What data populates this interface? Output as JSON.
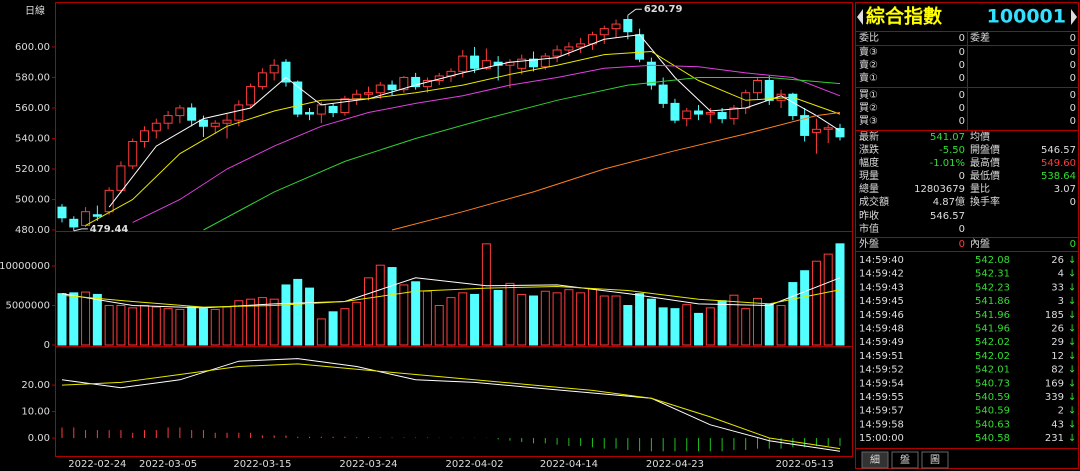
{
  "chart_data": [
    {
      "type": "candlestick",
      "title": "日線",
      "categories": [
        null,
        null,
        null,
        "2022-02-24",
        null,
        null,
        null,
        null,
        null,
        "2022-03-05",
        null,
        null,
        null,
        null,
        null,
        null,
        null,
        "2022-03-15",
        null,
        null,
        null,
        null,
        null,
        null,
        null,
        null,
        "2022-03-24",
        null,
        null,
        null,
        null,
        null,
        null,
        null,
        null,
        "2022-04-02",
        null,
        null,
        null,
        null,
        null,
        null,
        null,
        "2022-04-14",
        null,
        null,
        null,
        null,
        null,
        null,
        null,
        null,
        "2022-04-23",
        null,
        null,
        null,
        null,
        null,
        null,
        null,
        null,
        null,
        null,
        "2022-05-13",
        null,
        null,
        null
      ],
      "open": [
        495,
        487,
        483,
        490,
        492,
        506,
        522,
        538,
        545,
        550,
        555,
        560,
        552,
        548,
        550,
        552,
        562,
        574,
        583,
        590,
        577,
        557,
        556,
        561,
        557,
        566,
        569,
        570,
        575,
        572,
        580,
        574,
        578,
        581,
        584,
        594,
        586,
        590,
        588,
        586,
        592,
        587,
        594,
        598,
        600,
        602,
        608,
        612,
        618,
        608,
        590,
        575,
        563,
        553,
        558,
        556,
        557,
        553,
        560,
        570,
        578,
        565,
        569,
        555,
        544,
        546,
        546.57
      ],
      "high": [
        497,
        489,
        495,
        496,
        508,
        525,
        540,
        548,
        553,
        558,
        562,
        563,
        555,
        552,
        556,
        565,
        576,
        586,
        592,
        592,
        578,
        560,
        564,
        563,
        568,
        572,
        574,
        577,
        578,
        581,
        583,
        580,
        583,
        586,
        598,
        600,
        599,
        594,
        592,
        595,
        597,
        596,
        601,
        603,
        606,
        610,
        614,
        618,
        620.79,
        612,
        593,
        580,
        566,
        560,
        562,
        560,
        560,
        562,
        572,
        580,
        581,
        572,
        570,
        560,
        553,
        549,
        549.6
      ],
      "low": [
        485,
        479.44,
        482,
        486,
        490,
        504,
        520,
        534,
        540,
        546,
        550,
        548,
        541,
        543,
        540,
        548,
        560,
        572,
        578,
        574,
        554,
        552,
        550,
        554,
        555,
        562,
        565,
        566,
        568,
        570,
        572,
        570,
        575,
        577,
        580,
        583,
        585,
        578,
        573,
        582,
        584,
        585,
        590,
        594,
        596,
        598,
        602,
        606,
        605,
        590,
        572,
        560,
        550,
        548,
        552,
        550,
        550,
        549,
        556,
        566,
        562,
        560,
        552,
        538,
        530,
        537,
        538.64
      ],
      "close": [
        488,
        482,
        492,
        489,
        506,
        522,
        538,
        545,
        550,
        555,
        560,
        552,
        548,
        550,
        552,
        562,
        574,
        583,
        588,
        577,
        556,
        556,
        562,
        557,
        566,
        569,
        570,
        575,
        572,
        580,
        574,
        578,
        581,
        584,
        594,
        586,
        591,
        588,
        590,
        592,
        587,
        594,
        598,
        600,
        602,
        608,
        612,
        615,
        610,
        592,
        575,
        563,
        552,
        558,
        556,
        557,
        553,
        560,
        570,
        578,
        565,
        569,
        555,
        542,
        546,
        547,
        541.07
      ],
      "up_color": "#ff3c3c",
      "down_color": "#54ffff",
      "ylim": [
        480,
        627.5
      ],
      "yticks": [
        {
          "value": 480,
          "label": "480.00"
        },
        {
          "value": 500,
          "label": "500.00"
        },
        {
          "value": 520,
          "label": "520.00"
        },
        {
          "value": 540,
          "label": "540.00"
        },
        {
          "value": 560,
          "label": "560.00"
        },
        {
          "value": 580,
          "label": "580.00"
        },
        {
          "value": 600,
          "label": "600.00"
        }
      ],
      "high_label": 620.79,
      "low_label": 479.44,
      "lines": [
        {
          "color": "#ffffff",
          "x": [
            4,
            8,
            12,
            16,
            19,
            22,
            26,
            30,
            34,
            38,
            42,
            46,
            49,
            52,
            55,
            58,
            61,
            64,
            66
          ],
          "values": [
            495,
            535,
            553,
            560,
            580,
            562,
            566,
            575,
            583,
            590,
            593,
            605,
            608,
            580,
            558,
            560,
            568,
            555,
            545
          ]
        },
        {
          "color": "#e8e800",
          "x": [
            2,
            6,
            10,
            14,
            18,
            22,
            26,
            30,
            34,
            38,
            42,
            46,
            50,
            54,
            58,
            62,
            66
          ],
          "values": [
            483,
            500,
            530,
            548,
            558,
            565,
            566,
            570,
            575,
            582,
            588,
            595,
            597,
            578,
            565,
            567,
            556
          ]
        },
        {
          "color": "#e040e0",
          "x": [
            6,
            10,
            14,
            18,
            22,
            26,
            30,
            34,
            38,
            42,
            46,
            50,
            54,
            58,
            62,
            66
          ],
          "values": [
            485,
            500,
            520,
            535,
            548,
            557,
            563,
            568,
            575,
            580,
            586,
            588,
            587,
            583,
            580,
            568
          ]
        },
        {
          "color": "#30d030",
          "x": [
            12,
            18,
            24,
            30,
            36,
            42,
            48,
            54,
            60,
            66
          ],
          "values": [
            480,
            505,
            525,
            540,
            553,
            565,
            575,
            580,
            580,
            576
          ]
        },
        {
          "color": "#ff8020",
          "x": [
            28,
            34,
            40,
            46,
            52,
            58,
            64,
            66
          ],
          "values": [
            480,
            492,
            505,
            520,
            532,
            543,
            555,
            557
          ]
        }
      ]
    },
    {
      "type": "bar",
      "values": [
        6500000,
        6600000,
        6700000,
        6400000,
        5000000,
        5000000,
        4700000,
        5000000,
        4800000,
        4600000,
        4500000,
        4800000,
        4600000,
        4500000,
        4800000,
        5600000,
        5800000,
        6000000,
        5800000,
        7600000,
        8300000,
        7200000,
        3300000,
        4200000,
        4600000,
        5400000,
        8500000,
        10100000,
        9800000,
        7600000,
        8000000,
        6800000,
        5000000,
        6000000,
        6600000,
        6400000,
        12800000,
        6900000,
        7800000,
        6400000,
        6200000,
        6800000,
        6600000,
        7000000,
        6600000,
        7100000,
        6200000,
        6200000,
        5000000,
        6500000,
        5800000,
        4700000,
        4600000,
        5100000,
        4000000,
        4700000,
        5600000,
        6300000,
        4600000,
        5900000,
        5200000,
        5000000,
        7900000,
        9400000,
        10600000,
        11500000,
        12803679
      ],
      "up_color": "#ff3c3c",
      "down_color": "#54ffff",
      "ylim": [
        0,
        14300000
      ],
      "yticks": [
        0,
        5000000,
        10000000
      ],
      "lines": [
        {
          "color": "#ffffff",
          "x": [
            0,
            6,
            12,
            18,
            24,
            30,
            36,
            42,
            48,
            54,
            60,
            66
          ],
          "values": [
            6500000,
            5000000,
            4700000,
            5200000,
            5500000,
            8500000,
            7500000,
            7600000,
            6500000,
            5200000,
            5000000,
            8500000
          ]
        },
        {
          "color": "#e8e800",
          "x": [
            0,
            6,
            12,
            18,
            24,
            30,
            36,
            42,
            48,
            54,
            60,
            66
          ],
          "values": [
            6300000,
            5500000,
            4800000,
            5000000,
            5500000,
            6800000,
            7200000,
            7400000,
            6900000,
            5800000,
            5200000,
            7000000
          ]
        }
      ]
    },
    {
      "type": "line",
      "ylim": [
        -6.4,
        34
      ],
      "yticks": [
        {
          "value": 0,
          "label": "0.00"
        },
        {
          "value": 10,
          "label": "10.00"
        },
        {
          "value": 20,
          "label": "20.00"
        }
      ],
      "histogram": [
        4,
        4,
        3,
        3,
        3,
        3,
        2,
        3,
        3,
        4,
        4,
        3,
        3,
        2,
        2,
        2,
        2,
        1,
        1,
        1,
        0.5,
        0.5,
        0.5,
        0.5,
        0.5,
        0.3,
        0.3,
        0.2,
        0.2,
        0.2,
        0.2,
        0.2,
        0.1,
        0.1,
        0.1,
        0.1,
        0.1,
        -0.5,
        -1,
        -1.5,
        -2,
        -2,
        -2.5,
        -3,
        -3,
        -3.5,
        -4,
        -4,
        -4.5,
        -5,
        -5,
        -5,
        -5,
        -5,
        -5,
        -5,
        -5,
        -4.5,
        -4.5,
        -4,
        -4,
        -4,
        -3.5,
        -3.5,
        -3,
        -3,
        -3
      ],
      "positive_color": "#ff3c3c",
      "negative_color": "#20c020",
      "series": [
        {
          "color": "#ffffff",
          "x": [
            0,
            5,
            10,
            15,
            20,
            25,
            30,
            35,
            40,
            45,
            50,
            55,
            60,
            66
          ],
          "values": [
            22,
            19,
            22,
            29,
            30,
            27,
            22,
            21,
            19,
            17,
            15,
            5,
            -1,
            -5
          ]
        },
        {
          "color": "#e8e800",
          "x": [
            0,
            5,
            10,
            15,
            20,
            25,
            30,
            35,
            40,
            45,
            50,
            55,
            60,
            66
          ],
          "values": [
            20,
            21,
            24,
            27,
            28,
            26,
            24,
            22,
            20,
            18,
            15,
            8,
            0,
            -4
          ]
        }
      ]
    }
  ],
  "quote": {
    "title": "綜合指數",
    "code": "100001",
    "rows": [
      {
        "cells": [
          "委比",
          "0",
          "委差",
          "0"
        ],
        "colors": [
          "#ddd",
          "#ddd",
          "#ddd",
          "#ddd"
        ]
      },
      {
        "cells": [
          "賣③",
          "0",
          "0"
        ],
        "colors": [
          "#ddd",
          "#ddd",
          "#ddd"
        ]
      },
      {
        "cells": [
          "賣②",
          "0",
          "0"
        ],
        "colors": [
          "#ddd",
          "#ddd",
          "#ddd"
        ]
      },
      {
        "cells": [
          "賣①",
          "0",
          "0"
        ],
        "colors": [
          "#ddd",
          "#ddd",
          "#ddd"
        ]
      },
      {
        "cells": [
          "買①",
          "0",
          "0"
        ],
        "colors": [
          "#ddd",
          "#ddd",
          "#ddd"
        ]
      },
      {
        "cells": [
          "買②",
          "0",
          "0"
        ],
        "colors": [
          "#ddd",
          "#ddd",
          "#ddd"
        ]
      },
      {
        "cells": [
          "買③",
          "0",
          "0"
        ],
        "colors": [
          "#ddd",
          "#ddd",
          "#ddd"
        ]
      },
      {
        "cells": [
          "最新",
          "541.07",
          "均價"
        ],
        "colors": [
          "#ddd",
          "#33dd33",
          "#ddd"
        ]
      },
      {
        "cells": [
          "漲跌",
          "-5.50",
          "開盤價",
          "546.57"
        ],
        "colors": [
          "#ddd",
          "#33dd33",
          "#ddd",
          "#ddd"
        ]
      },
      {
        "cells": [
          "幅度",
          "-1.01%",
          "最高價",
          "549.60"
        ],
        "colors": [
          "#ddd",
          "#33dd33",
          "#ddd",
          "#ff3c3c"
        ]
      },
      {
        "cells": [
          "現量",
          "0",
          "最低價",
          "538.64"
        ],
        "colors": [
          "#ddd",
          "#ddd",
          "#ddd",
          "#33dd33"
        ]
      },
      {
        "cells": [
          "總量",
          "12803679",
          "量比",
          "3.07"
        ],
        "colors": [
          "#ddd",
          "#ddd",
          "#ddd",
          "#ddd"
        ]
      },
      {
        "cells": [
          "成交額",
          "4.87億",
          "換手率",
          "0"
        ],
        "colors": [
          "#ddd",
          "#ddd",
          "#ddd",
          "#ddd"
        ]
      },
      {
        "cells": [
          "昨收",
          "546.57"
        ],
        "colors": [
          "#ddd",
          "#ddd"
        ]
      },
      {
        "cells": [
          "市值",
          "0"
        ],
        "colors": [
          "#ddd",
          "#ddd"
        ]
      },
      {
        "cells": [
          "外盤",
          "0",
          "內盤",
          "0"
        ],
        "colors": [
          "#ddd",
          "#ff3c3c",
          "#ddd",
          "#33dd33"
        ]
      }
    ],
    "trades": [
      [
        "14:59:40",
        "542.08",
        "26",
        "↓"
      ],
      [
        "14:59:42",
        "542.31",
        "4",
        "↓"
      ],
      [
        "14:59:43",
        "542.23",
        "33",
        "↓"
      ],
      [
        "14:59:45",
        "541.86",
        "3",
        "↓"
      ],
      [
        "14:59:46",
        "541.96",
        "185",
        "↓"
      ],
      [
        "14:59:48",
        "541.96",
        "26",
        "↓"
      ],
      [
        "14:59:49",
        "542.02",
        "29",
        "↓"
      ],
      [
        "14:59:51",
        "542.02",
        "12",
        "↓"
      ],
      [
        "14:59:52",
        "542.01",
        "82",
        "↓"
      ],
      [
        "14:59:54",
        "540.73",
        "169",
        "↓"
      ],
      [
        "14:59:55",
        "540.59",
        "339",
        "↓"
      ],
      [
        "14:59:57",
        "540.59",
        "2",
        "↓"
      ],
      [
        "14:59:58",
        "540.63",
        "43",
        "↓"
      ],
      [
        "15:00:00",
        "540.58",
        "231",
        "↓"
      ]
    ],
    "tabs": [
      "細",
      "盤",
      "圖"
    ]
  }
}
